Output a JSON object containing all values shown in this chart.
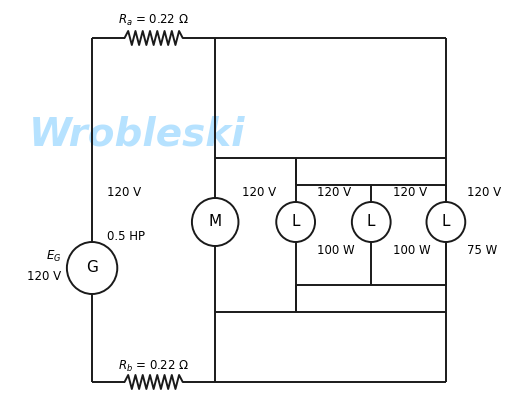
{
  "background_color": "#ffffff",
  "watermark_text": "Wrobleski",
  "watermark_color": "#aaddff",
  "watermark_fontsize": 28,
  "Ra_label": "R_a = 0.22 Ω",
  "Rb_label": "R_b = 0.22 Ω",
  "voltage_left": "120 V",
  "hp_label": "0.5 HP",
  "EG_line1": "E",
  "EG_line2": "G",
  "EG_voltage": "120 V",
  "motor_label": "M",
  "lamp_label": "L",
  "motor_voltage": "120 V",
  "lamp1_voltage": "120 V",
  "lamp1_power": "100 W",
  "lamp2_voltage": "120 V",
  "lamp2_power": "100 W",
  "lamp3_voltage": "120 V",
  "lamp3_power": "75 W",
  "line_color": "#1a1a1a",
  "lw": 1.4
}
